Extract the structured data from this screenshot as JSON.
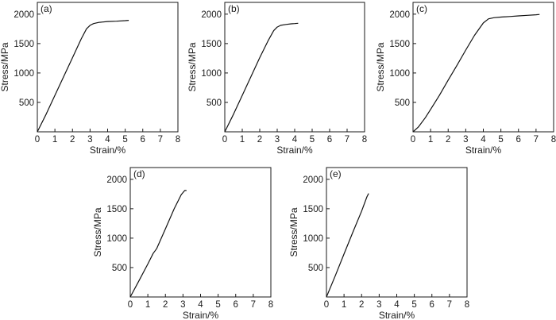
{
  "chart_data": [
    {
      "type": "line",
      "panel_label": "(a)",
      "xlabel": "Strain/%",
      "ylabel": "Stress/MPa",
      "xlim": [
        0,
        8
      ],
      "ylim": [
        0,
        2200
      ],
      "xticks": [
        "0",
        "1",
        "2",
        "3",
        "4",
        "5",
        "6",
        "7",
        "8"
      ],
      "yticks": [
        "500",
        "1000",
        "1500",
        "2000"
      ],
      "series": [
        {
          "x": [
            0,
            0.5,
            1.0,
            1.5,
            2.0,
            2.5,
            2.8,
            3.0,
            3.2,
            3.5,
            4.0,
            4.5,
            5.0,
            5.2
          ],
          "y": [
            0,
            300,
            620,
            940,
            1260,
            1580,
            1750,
            1810,
            1840,
            1860,
            1875,
            1880,
            1890,
            1895
          ]
        }
      ]
    },
    {
      "type": "line",
      "panel_label": "(b)",
      "xlabel": "Strain/%",
      "ylabel": "Stress/MPa",
      "xlim": [
        0,
        8
      ],
      "ylim": [
        0,
        2200
      ],
      "xticks": [
        "0",
        "1",
        "2",
        "3",
        "4",
        "5",
        "6",
        "7",
        "8"
      ],
      "yticks": [
        "500",
        "1000",
        "1500",
        "2000"
      ],
      "series": [
        {
          "x": [
            0,
            0.5,
            1.0,
            1.5,
            2.0,
            2.5,
            2.8,
            3.0,
            3.2,
            3.5,
            3.8,
            4.0,
            4.2
          ],
          "y": [
            0,
            300,
            620,
            940,
            1260,
            1560,
            1720,
            1780,
            1810,
            1825,
            1835,
            1840,
            1845
          ]
        }
      ]
    },
    {
      "type": "line",
      "panel_label": "(c)",
      "xlabel": "Strain/%",
      "ylabel": "Stress/MPa",
      "xlim": [
        0,
        8
      ],
      "ylim": [
        0,
        2200
      ],
      "xticks": [
        "0",
        "1",
        "2",
        "3",
        "4",
        "5",
        "6",
        "7",
        "8"
      ],
      "yticks": [
        "500",
        "1000",
        "1500",
        "2000"
      ],
      "series": [
        {
          "x": [
            0,
            0.3,
            0.7,
            1.0,
            1.5,
            2.0,
            2.5,
            3.0,
            3.5,
            4.0,
            4.3,
            4.6,
            5.0,
            5.5,
            6.0,
            6.5,
            7.0,
            7.2
          ],
          "y": [
            0,
            80,
            240,
            380,
            620,
            880,
            1130,
            1390,
            1640,
            1850,
            1920,
            1940,
            1950,
            1960,
            1970,
            1980,
            1990,
            1995
          ]
        }
      ]
    },
    {
      "type": "line",
      "panel_label": "(d)",
      "xlabel": "Strain/%",
      "ylabel": "Stress/MPa",
      "xlim": [
        0,
        8
      ],
      "ylim": [
        0,
        2200
      ],
      "xticks": [
        "0",
        "1",
        "2",
        "3",
        "4",
        "5",
        "6",
        "7",
        "8"
      ],
      "yticks": [
        "500",
        "1000",
        "1500",
        "2000"
      ],
      "series": [
        {
          "x": [
            0,
            0.5,
            1.0,
            1.3,
            1.5,
            2.0,
            2.5,
            2.9,
            3.1,
            3.2
          ],
          "y": [
            0,
            280,
            560,
            740,
            820,
            1160,
            1500,
            1740,
            1810,
            1810
          ]
        }
      ]
    },
    {
      "type": "line",
      "panel_label": "(e)",
      "xlabel": "Strain/%",
      "ylabel": "Stress/MPa",
      "xlim": [
        0,
        8
      ],
      "ylim": [
        0,
        2200
      ],
      "xticks": [
        "0",
        "1",
        "2",
        "3",
        "4",
        "5",
        "6",
        "7",
        "8"
      ],
      "yticks": [
        "500",
        "1000",
        "1500",
        "2000"
      ],
      "series": [
        {
          "x": [
            0,
            0.5,
            1.0,
            1.5,
            2.0,
            2.3,
            2.4
          ],
          "y": [
            0,
            360,
            730,
            1100,
            1460,
            1700,
            1760
          ]
        }
      ]
    }
  ]
}
